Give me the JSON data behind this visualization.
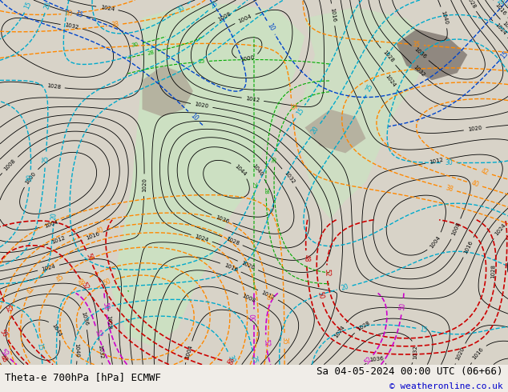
{
  "title_left": "Theta-e 700hPa [hPa] ECMWF",
  "title_right": "Sa 04-05-2024 00:00 UTC (06+66)",
  "copyright": "© weatheronline.co.uk",
  "background_color": "#f0ede8",
  "fig_width": 6.34,
  "fig_height": 4.9,
  "dpi": 100,
  "bottom_bar_color": "#ffffff",
  "bottom_text_color": "#000000",
  "copyright_color": "#0000cc"
}
